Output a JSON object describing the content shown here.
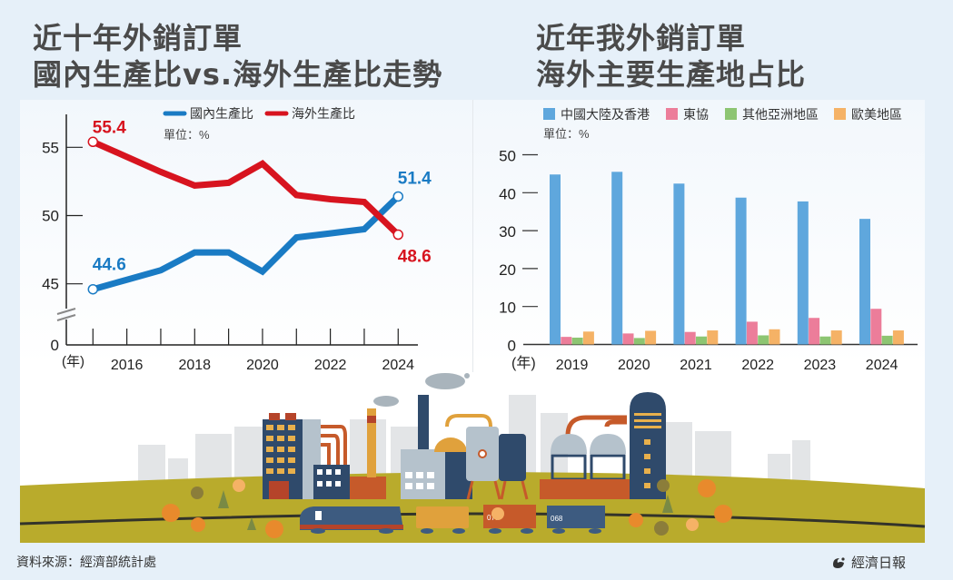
{
  "left_title": [
    "近十年外銷訂單",
    "國內生產比vs.海外生產比走勢"
  ],
  "right_title": [
    "近年我外銷訂單",
    "海外主要生產地占比"
  ],
  "footer": {
    "source": "資料來源：經濟部統計處",
    "brand": "經濟日報",
    "brand_icon": "udn-logo-icon"
  },
  "chart_data": [
    {
      "type": "line",
      "title": "近十年外銷訂單 國內生產比vs.海外生產比走勢",
      "unit_label": "單位：%",
      "xlabel": "(年)",
      "ylabel": "",
      "x": [
        2015,
        2016,
        2017,
        2018,
        2019,
        2020,
        2021,
        2022,
        2023,
        2024
      ],
      "x_tick_labels": [
        "2016",
        "2018",
        "2020",
        "2022",
        "2024"
      ],
      "y_tick_labels": [
        "0",
        "45",
        "50",
        "55"
      ],
      "y_axis_break": true,
      "ylim": [
        43.5,
        56.5
      ],
      "grid": false,
      "legend_position": "top-center",
      "series": [
        {
          "name": "國內生產比",
          "color": "#1a7bc4",
          "values": [
            44.6,
            45.3,
            46.0,
            47.3,
            47.3,
            45.9,
            48.4,
            48.7,
            49.0,
            51.4
          ],
          "labels": [
            {
              "index": 0,
              "text": "44.6"
            },
            {
              "index": 9,
              "text": "51.4"
            }
          ]
        },
        {
          "name": "海外生產比",
          "color": "#d7141f",
          "values": [
            55.4,
            54.3,
            53.2,
            52.2,
            52.4,
            53.8,
            51.5,
            51.2,
            51.0,
            48.6
          ],
          "labels": [
            {
              "index": 0,
              "text": "55.4"
            },
            {
              "index": 9,
              "text": "48.6"
            }
          ]
        }
      ]
    },
    {
      "type": "bar",
      "title": "近年我外銷訂單 海外主要生產地占比",
      "unit_label": "單位：%",
      "xlabel": "(年)",
      "ylabel": "",
      "categories": [
        "2019",
        "2020",
        "2021",
        "2022",
        "2023",
        "2024"
      ],
      "y_tick_labels": [
        "0",
        "10",
        "20",
        "30",
        "40",
        "50"
      ],
      "ylim": [
        0,
        50
      ],
      "grid": false,
      "legend_position": "top-left",
      "series": [
        {
          "name": "中國大陸及香港",
          "color": "#5fa7dd",
          "values": [
            44.8,
            45.5,
            42.4,
            38.7,
            37.7,
            33.1
          ]
        },
        {
          "name": "東協",
          "color": "#ec7d9a",
          "values": [
            2.0,
            2.9,
            3.3,
            6.0,
            7.0,
            9.4
          ]
        },
        {
          "name": "其他亞洲地區",
          "color": "#8dc572",
          "values": [
            1.8,
            1.7,
            2.1,
            2.4,
            2.1,
            2.3
          ]
        },
        {
          "name": "歐美地區",
          "color": "#f5b266",
          "values": [
            3.4,
            3.6,
            3.7,
            4.0,
            3.7,
            3.7
          ]
        }
      ]
    }
  ]
}
